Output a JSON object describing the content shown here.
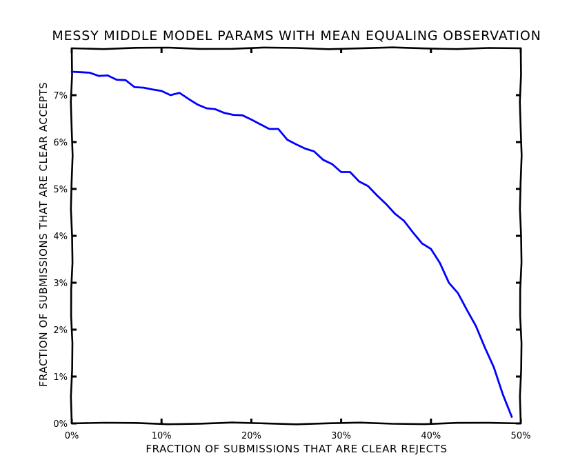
{
  "chart_data": {
    "type": "line",
    "title": "MESSY MIDDLE MODEL PARAMS WITH MEAN EQUALING OBSERVATION",
    "xlabel": "FRACTION OF SUBMISSIONS THAT ARE CLEAR REJECTS",
    "ylabel": "FRACTION OF SUBMISSIONS THAT ARE CLEAR ACCEPTS",
    "xlim": [
      0,
      50
    ],
    "ylim": [
      0,
      8
    ],
    "x_ticks": [
      0,
      10,
      20,
      30,
      40,
      50
    ],
    "x_tick_labels": [
      "0%",
      "10%",
      "20%",
      "30%",
      "40%",
      "50%"
    ],
    "y_ticks": [
      0,
      1,
      2,
      3,
      4,
      5,
      6,
      7
    ],
    "y_tick_labels": [
      "0%",
      "1%",
      "2%",
      "3%",
      "4%",
      "5%",
      "6%",
      "7%"
    ],
    "grid": false,
    "legend": "none",
    "series": [
      {
        "color": "#0000ff",
        "x": [
          0,
          1,
          2,
          3,
          4,
          5,
          6,
          7,
          8,
          9,
          10,
          11,
          12,
          13,
          14,
          15,
          16,
          17,
          18,
          19,
          20,
          21,
          22,
          23,
          24,
          25,
          26,
          27,
          28,
          29,
          30,
          31,
          32,
          33,
          34,
          35,
          36,
          37,
          38,
          39,
          40,
          41,
          42,
          43,
          44,
          45,
          46,
          47,
          48,
          49
        ],
        "y": [
          7.5,
          7.49,
          7.48,
          7.41,
          7.42,
          7.33,
          7.32,
          7.17,
          7.16,
          7.12,
          7.09,
          7.0,
          7.05,
          6.92,
          6.8,
          6.72,
          6.7,
          6.62,
          6.58,
          6.57,
          6.48,
          6.38,
          6.28,
          6.28,
          6.05,
          5.95,
          5.86,
          5.8,
          5.62,
          5.53,
          5.36,
          5.36,
          5.16,
          5.06,
          4.86,
          4.68,
          4.47,
          4.32,
          4.07,
          3.84,
          3.72,
          3.42,
          3.0,
          2.78,
          2.42,
          2.08,
          1.62,
          1.2,
          0.62,
          0.14
        ]
      }
    ]
  }
}
